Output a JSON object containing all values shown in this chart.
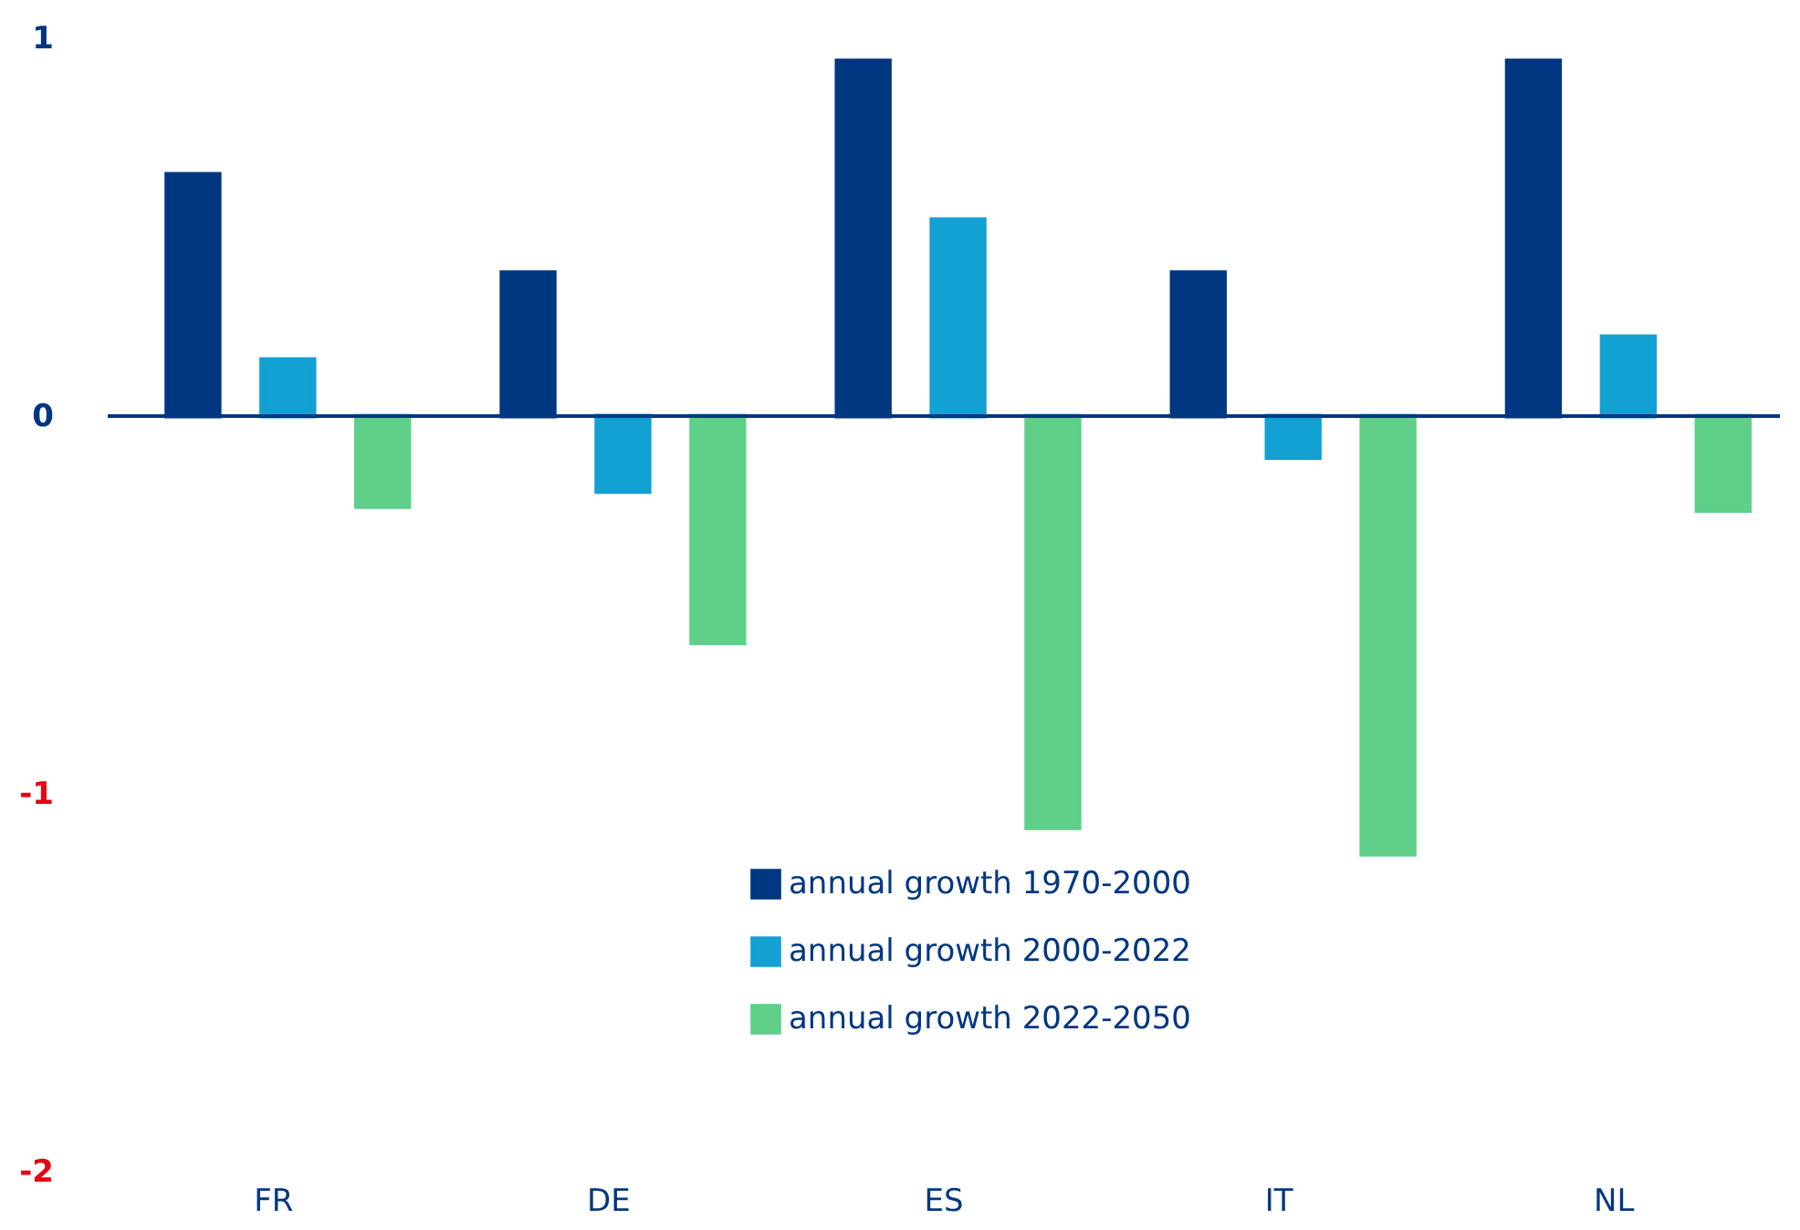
{
  "chart_data": {
    "type": "bar",
    "categories": [
      "FR",
      "DE",
      "ES",
      "IT",
      "NL"
    ],
    "series": [
      {
        "name": "annual growth 1970-2000",
        "color": "#003781",
        "values": [
          0.64,
          0.38,
          0.94,
          0.38,
          0.94
        ]
      },
      {
        "name": "annual growth 2000-2022",
        "color": "#13a0d3",
        "values": [
          0.15,
          -0.2,
          0.52,
          -0.11,
          0.21
        ]
      },
      {
        "name": "annual growth 2022-2050",
        "color": "#5fcf8a",
        "values": [
          -0.24,
          -0.6,
          -1.09,
          -1.16,
          -0.25
        ]
      }
    ],
    "ylim": [
      -2,
      1
    ],
    "yticks": [
      -2,
      -1,
      0,
      1
    ],
    "ref_lines": [
      {
        "axis": "y",
        "value": 0,
        "color": "#003781"
      }
    ],
    "grid": false,
    "legend": "bottom"
  }
}
